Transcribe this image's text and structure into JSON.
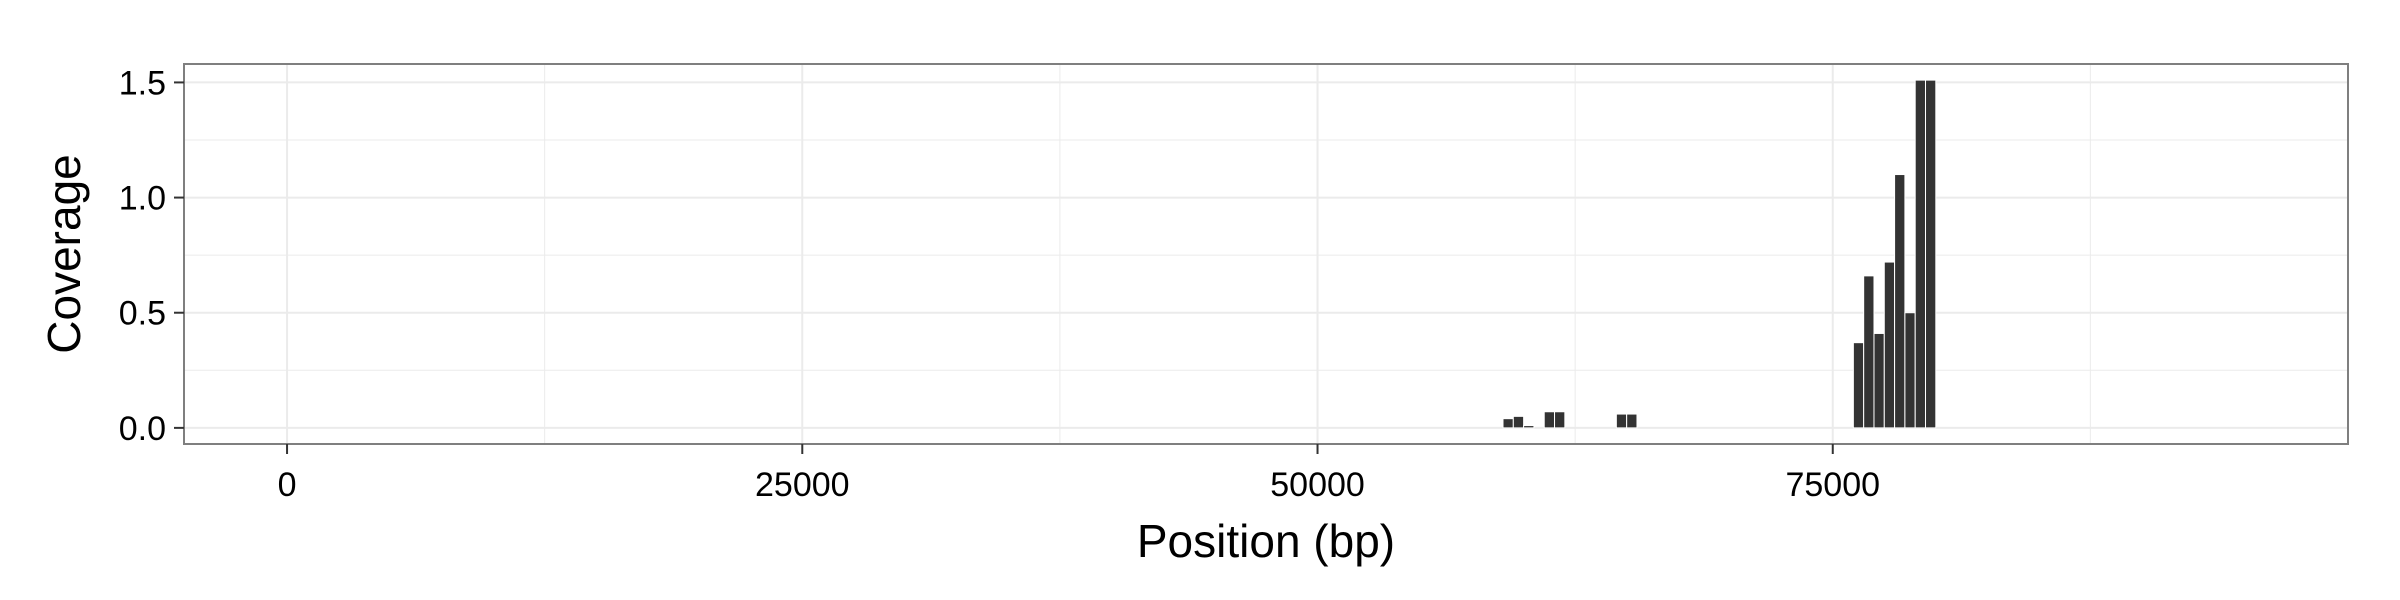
{
  "chart_data": {
    "type": "bar",
    "title": "",
    "xlabel": "Position (bp)",
    "ylabel": "Coverage",
    "xlim": [
      -5000,
      100000
    ],
    "ylim": [
      -0.07,
      1.58
    ],
    "x_ticks": [
      0,
      25000,
      50000,
      75000
    ],
    "x_tick_labels": [
      "0",
      "25000",
      "50000",
      "75000"
    ],
    "y_ticks": [
      0.0,
      0.5,
      1.0,
      1.5
    ],
    "y_tick_labels": [
      "0.0",
      "0.5",
      "1.0",
      "1.5"
    ],
    "bin_width": 500,
    "grid": true,
    "legend": "none",
    "bar_color": "#333333",
    "panel_border_color": "#7f7f7f",
    "grid_color": "#ebebeb",
    "x": [
      59000,
      59500,
      60000,
      61000,
      61500,
      64500,
      65000,
      76000,
      76500,
      77000,
      77500,
      78000,
      78500,
      79000,
      79500
    ],
    "values": [
      0.04,
      0.05,
      0.01,
      0.07,
      0.07,
      0.06,
      0.06,
      0.37,
      0.66,
      0.41,
      0.72,
      1.1,
      0.5,
      1.51,
      1.51
    ]
  }
}
